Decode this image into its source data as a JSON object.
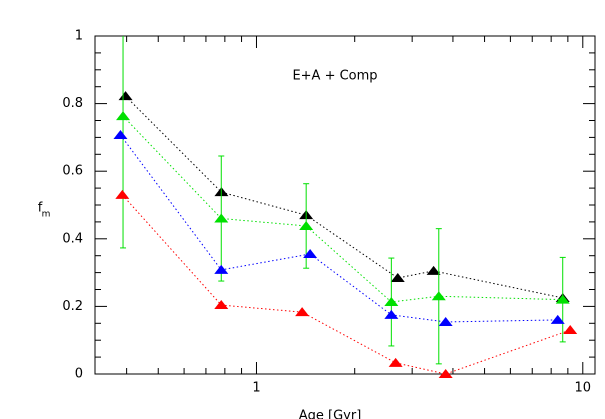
{
  "chart_data": {
    "type": "scatter",
    "annotation": "E+A + Comp",
    "xlabel": "Age [Gyr]",
    "ylabel": "f",
    "ylabel_sub": "m",
    "xscale": "log",
    "xlim": [
      0.32,
      10.9
    ],
    "ylim": [
      0,
      1
    ],
    "xticks": [
      1,
      10
    ],
    "xminorticks": [
      0.4,
      0.5,
      0.6,
      0.7,
      0.8,
      0.9,
      2,
      3,
      4,
      5,
      6,
      7,
      8,
      9
    ],
    "yticks": [
      0,
      0.2,
      0.4,
      0.6,
      0.8,
      1
    ],
    "yminorticks": [
      0.05,
      0.1,
      0.15,
      0.25,
      0.3,
      0.35,
      0.45,
      0.5,
      0.55,
      0.65,
      0.7,
      0.75,
      0.85,
      0.9,
      0.95
    ],
    "grid": false,
    "series": [
      {
        "name": "black",
        "color": "#000000",
        "x": [
          0.397,
          0.781,
          1.42,
          2.71,
          3.49,
          8.68
        ],
        "values": [
          0.822,
          0.538,
          0.47,
          0.284,
          0.305,
          0.225
        ]
      },
      {
        "name": "green",
        "color": "#00e000",
        "x": [
          0.39,
          0.78,
          1.42,
          2.59,
          3.62,
          8.68
        ],
        "values": [
          0.763,
          0.46,
          0.438,
          0.213,
          0.23,
          0.22
        ],
        "errors": [
          0.39,
          0.185,
          0.125,
          0.13,
          0.2,
          0.125
        ]
      },
      {
        "name": "blue",
        "color": "#0000ff",
        "x": [
          0.383,
          0.78,
          1.46,
          2.59,
          3.8,
          8.38
        ],
        "values": [
          0.707,
          0.308,
          0.355,
          0.175,
          0.154,
          0.16
        ]
      },
      {
        "name": "red",
        "color": "#ff0000",
        "x": [
          0.388,
          0.78,
          1.38,
          2.67,
          3.8,
          9.15
        ],
        "values": [
          0.53,
          0.204,
          0.183,
          0.033,
          0.0,
          0.13
        ]
      }
    ]
  }
}
